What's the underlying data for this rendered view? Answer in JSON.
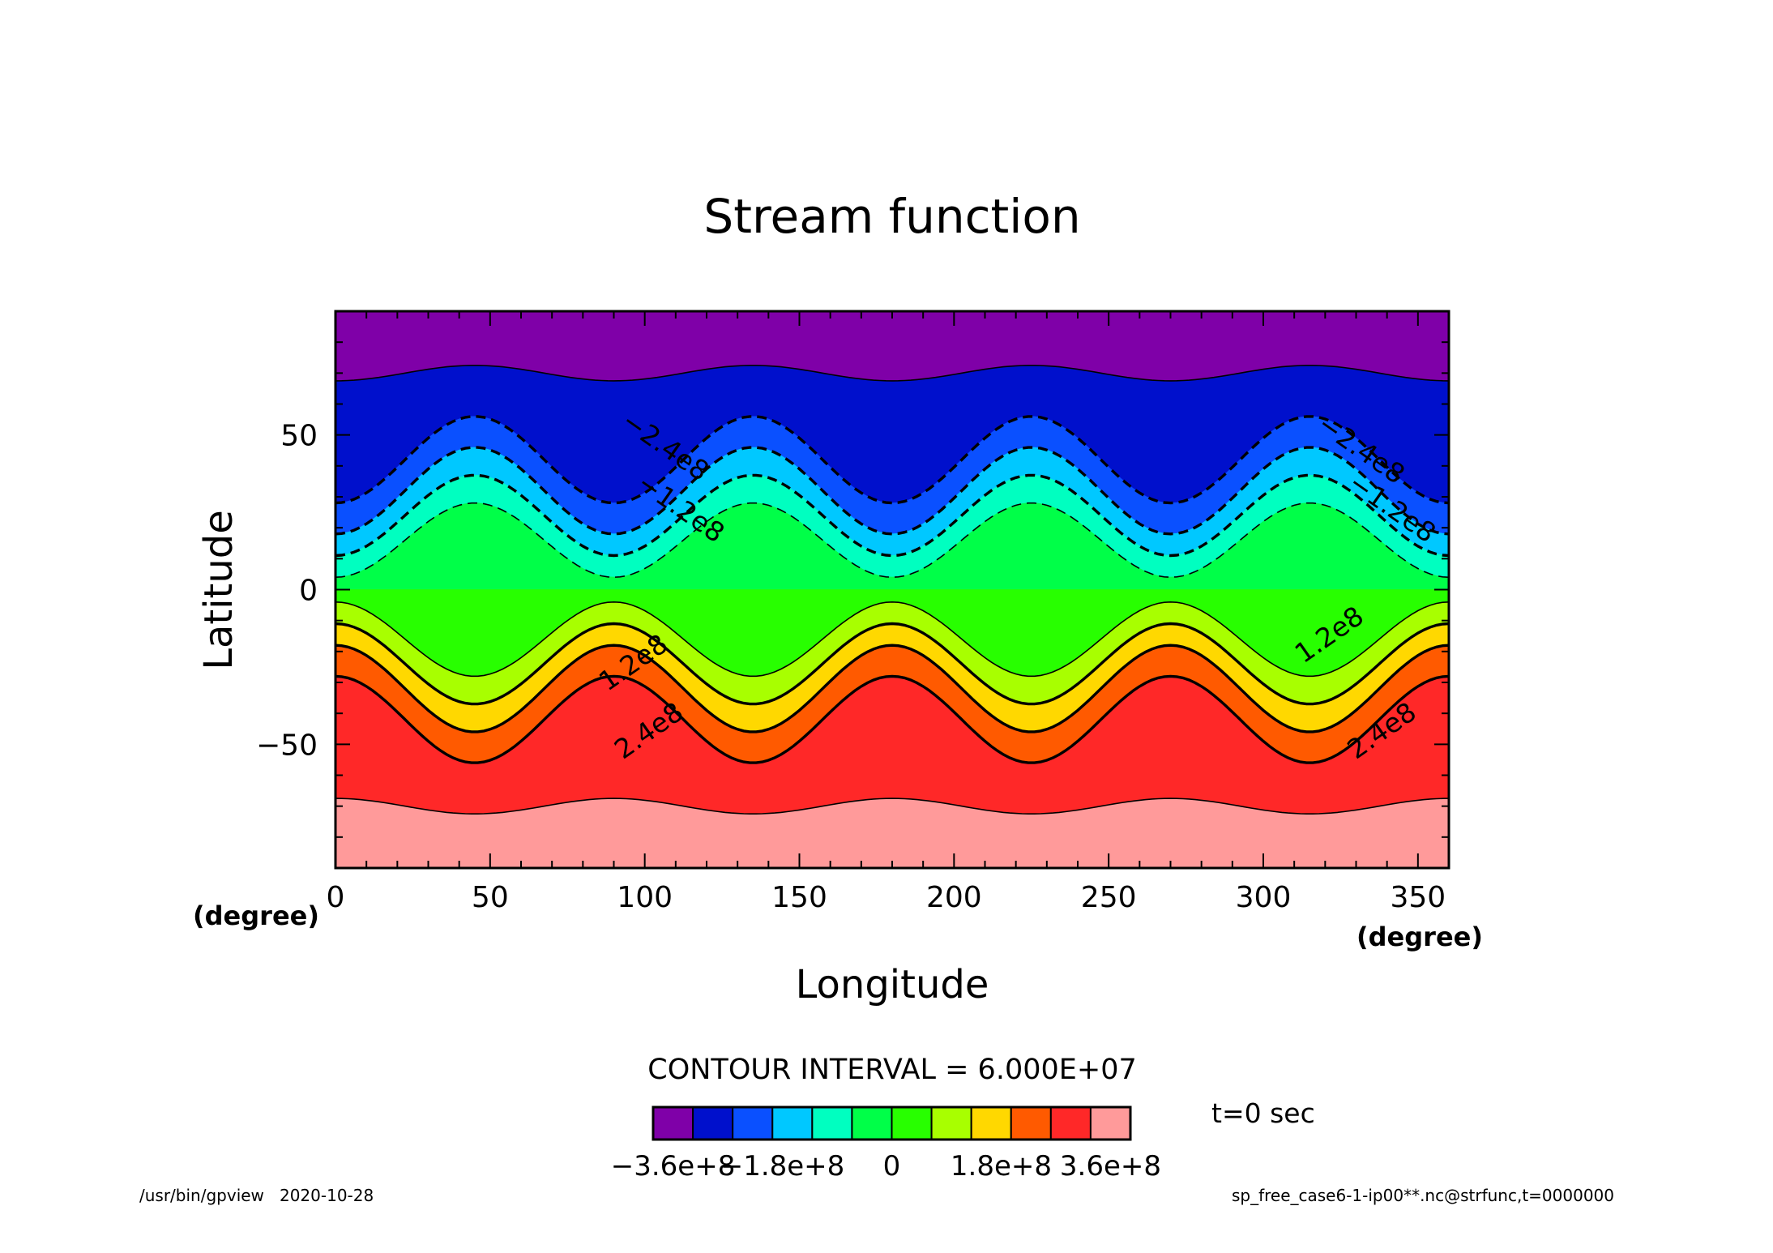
{
  "chart_data": {
    "type": "contour",
    "title": "Stream function",
    "xlabel": "Longitude",
    "ylabel": "Latitude",
    "x_unit": "(degree)",
    "xlim": [
      0,
      360
    ],
    "ylim": [
      -90,
      90
    ],
    "x_ticks": [
      0,
      50,
      100,
      150,
      200,
      250,
      300,
      350
    ],
    "y_ticks": [
      -50,
      0,
      50
    ],
    "contour_interval_text": "CONTOUR INTERVAL = 6.000E+07",
    "time_label": "t=0 sec",
    "colorbar": {
      "tick_labels": [
        "−3.6e+8",
        "−1.8e+8",
        "0",
        "1.8e+8",
        "3.6e+8"
      ],
      "colors": [
        "#7f00a8",
        "#0010cc",
        "#0a50ff",
        "#00c8ff",
        "#00ffc0",
        "#00ff48",
        "#28ff00",
        "#a8ff00",
        "#ffd800",
        "#ff5a00",
        "#ff2828",
        "#ff9a9a"
      ]
    },
    "contour_labels": [
      {
        "text": "−2.4e8",
        "lon": 105,
        "lat": 44
      },
      {
        "text": "−1.2e8",
        "lon": 110,
        "lat": 24
      },
      {
        "text": "−2.4e8",
        "lon": 330,
        "lat": 43
      },
      {
        "text": "−1.2e8",
        "lon": 340,
        "lat": 24
      },
      {
        "text": "1.2e8",
        "lon": 98,
        "lat": -26
      },
      {
        "text": "2.4e8",
        "lon": 103,
        "lat": -48
      },
      {
        "text": "1.2e8",
        "lon": 323,
        "lat": -17
      },
      {
        "text": "2.4e8",
        "lon": 340,
        "lat": -48
      }
    ],
    "contour_lines": [
      {
        "level": -300000000.0,
        "center": 70,
        "amp": 2.5,
        "style": "thin-solid"
      },
      {
        "level": -240000000.0,
        "center": 42,
        "amp": 14,
        "style": "dashed"
      },
      {
        "level": -180000000.0,
        "center": 32,
        "amp": 14,
        "style": "dashed"
      },
      {
        "level": -120000000.0,
        "center": 24,
        "amp": 13,
        "style": "dashed"
      },
      {
        "level": -60000000.0,
        "center": 16,
        "amp": 12,
        "style": "thin-dashed"
      },
      {
        "level": 60000000.0,
        "center": -16,
        "amp": 12,
        "style": "thin-solid"
      },
      {
        "level": 120000000.0,
        "center": -24,
        "amp": 13,
        "style": "solid"
      },
      {
        "level": 180000000.0,
        "center": -32,
        "amp": 14,
        "style": "solid"
      },
      {
        "level": 240000000.0,
        "center": -42,
        "amp": 14,
        "style": "solid"
      },
      {
        "level": 300000000.0,
        "center": -70,
        "amp": 2.5,
        "style": "thin-solid"
      }
    ],
    "regions": [
      {
        "color": "#7f00a8",
        "top": 90,
        "bottom_line": 0
      },
      {
        "color": "#0010cc",
        "top_line": 0,
        "bottom_line": 1
      },
      {
        "color": "#0a50ff",
        "top_line": 1,
        "bottom_line": 2
      },
      {
        "color": "#00c8ff",
        "top_line": 2,
        "bottom_line": 3
      },
      {
        "color": "#00ffc0",
        "top_line": 3,
        "bottom_line": 4
      },
      {
        "color": "#00ff48",
        "top_line": 4,
        "bottom": 0
      },
      {
        "color": "#28ff00",
        "top": 0,
        "bottom_line": 5
      },
      {
        "color": "#a8ff00",
        "top_line": 5,
        "bottom_line": 6
      },
      {
        "color": "#ffd800",
        "top_line": 6,
        "bottom_line": 7
      },
      {
        "color": "#ff5a00",
        "top_line": 7,
        "bottom_line": 8
      },
      {
        "color": "#ff2828",
        "top_line": 8,
        "bottom_line": 9
      },
      {
        "color": "#ff9a9a",
        "top_line": 9,
        "bottom": -90
      }
    ]
  },
  "footer": {
    "left": "/usr/bin/gpview   2020-10-28",
    "right": "sp_free_case6-1-ip00**.nc@strfunc,t=0000000"
  }
}
